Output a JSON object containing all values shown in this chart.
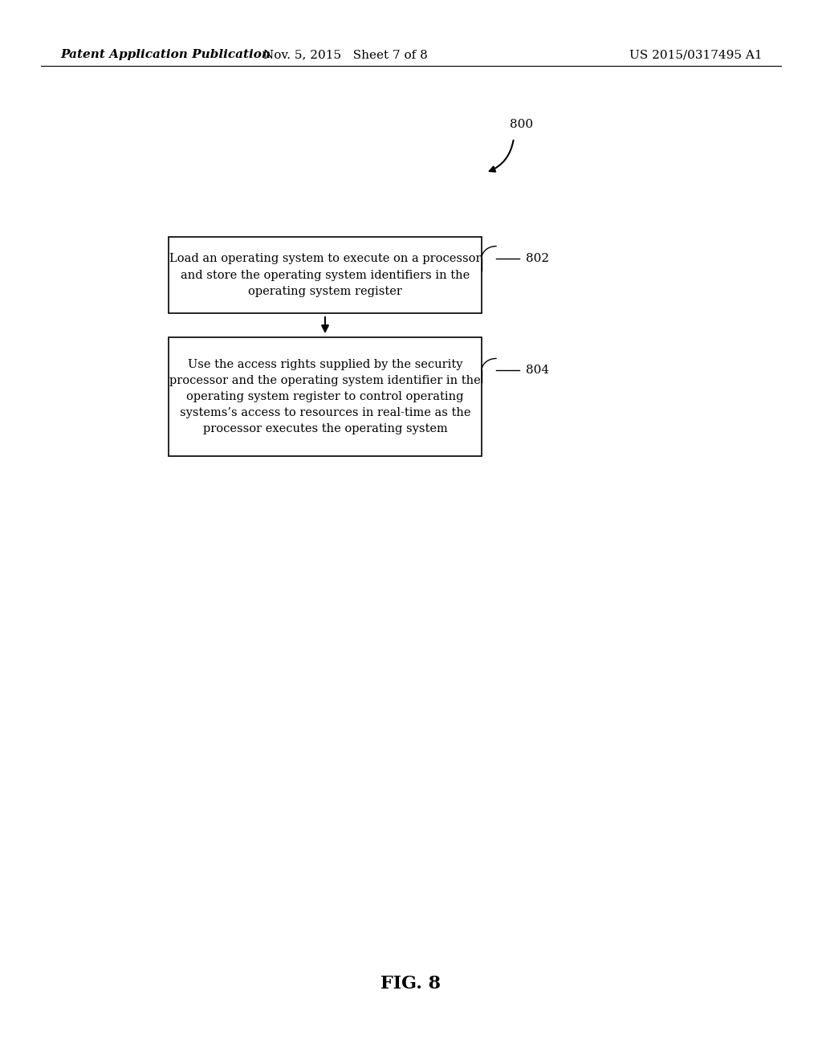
{
  "background_color": "#ffffff",
  "header_left": "Patent Application Publication",
  "header_middle": "Nov. 5, 2015   Sheet 7 of 8",
  "header_right": "US 2015/0317495 A1",
  "fig_label": "FIG. 8",
  "diagram_number": "800",
  "box1_text": "Load an operating system to execute on a processor\nand store the operating system identifiers in the\noperating system register",
  "box1_label": "802",
  "box2_text": "Use the access rights supplied by the security\nprocessor and the operating system identifier in the\noperating system register to control operating\nsystems’s access to resources in real-time as the\nprocessor executes the operating system",
  "box2_label": "804"
}
